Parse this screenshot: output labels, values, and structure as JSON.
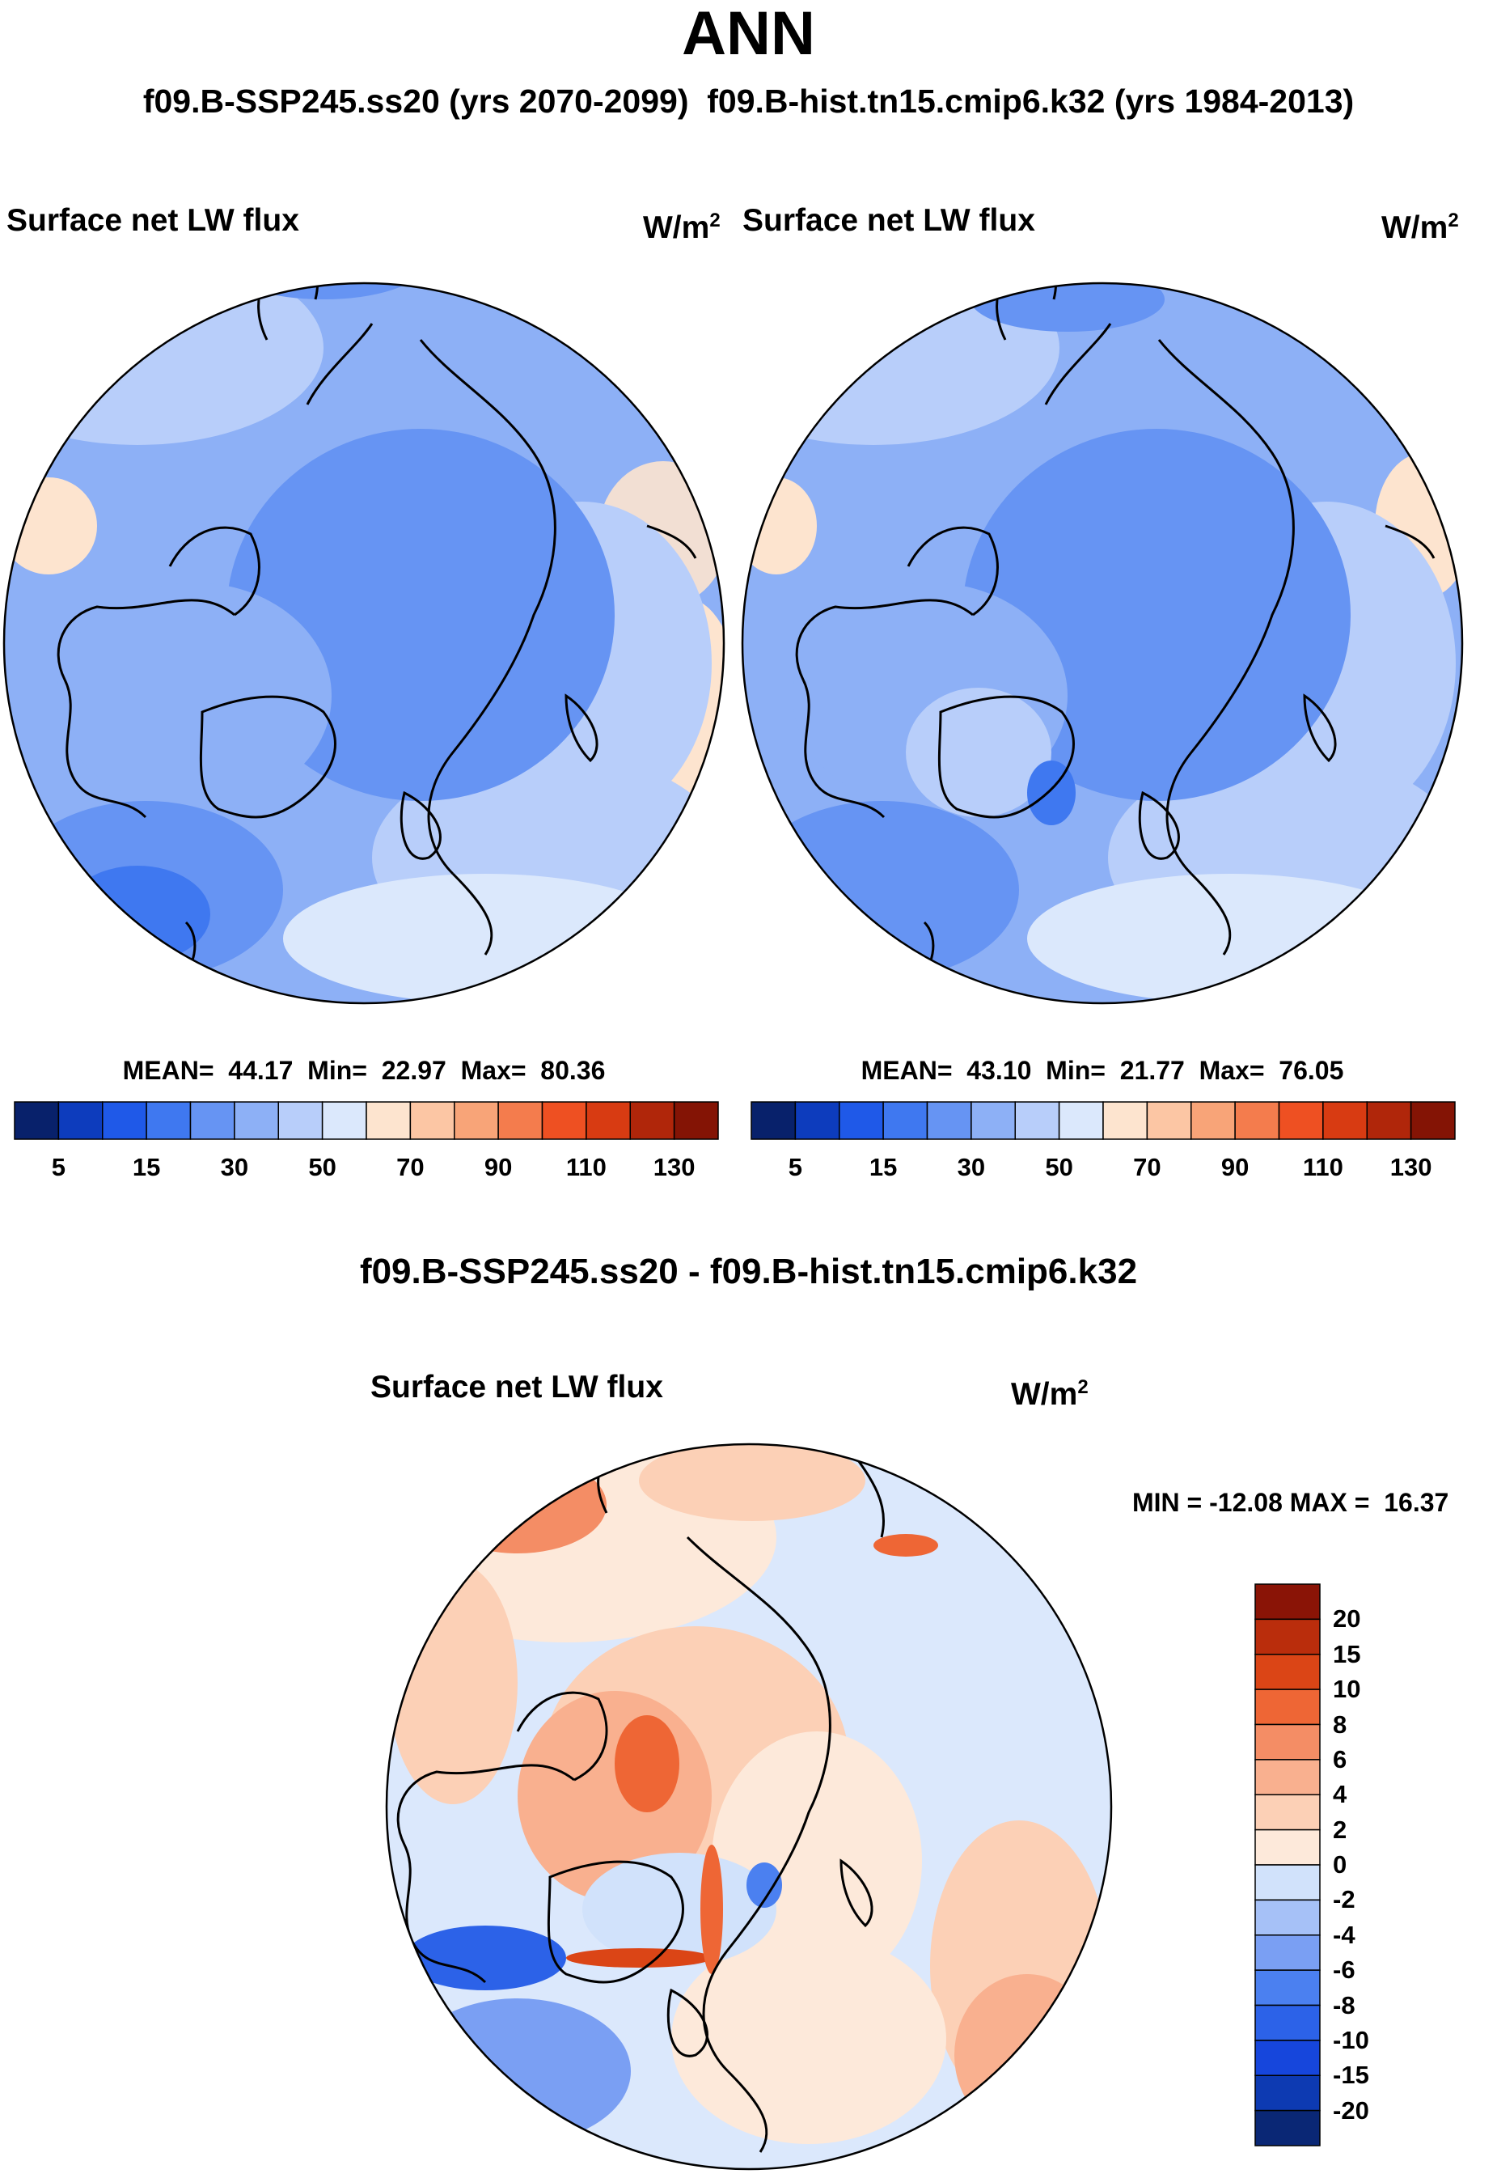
{
  "season": "ANN",
  "header": "f09.B-SSP245.ss20 (yrs 2070-2099)  f09.B-hist.tn15.cmip6.k32 (yrs 1984-2013)",
  "panels": [
    {
      "title": "Surface net LW flux",
      "unit_base": "W/m",
      "unit_exp": "2",
      "stats_text": "MEAN=  44.17  Min=  22.97  Max=  80.36"
    },
    {
      "title": "Surface net LW flux",
      "unit_base": "W/m",
      "unit_exp": "2",
      "stats_text": "MEAN=  43.10  Min=  21.77  Max=  76.05"
    }
  ],
  "diff": {
    "title": "f09.B-SSP245.ss20 - f09.B-hist.tn15.cmip6.k32",
    "panel_title": "Surface net LW flux",
    "unit_base": "W/m",
    "unit_exp": "2",
    "stats_text": "MIN = -12.08 MAX =  16.37"
  },
  "colors": {
    "abs_scale": [
      "#08216b",
      "#0d3cbd",
      "#1f59e8",
      "#3f78f0",
      "#6694f3",
      "#8db0f6",
      "#b8cefa",
      "#dbe8fc",
      "#fde4cf",
      "#fcc6a4",
      "#f8a478",
      "#f47c4d",
      "#ee5022",
      "#d83b12",
      "#b0260a",
      "#841405"
    ],
    "diff_scale": [
      "#0a2775",
      "#0d3ab2",
      "#1646dc",
      "#2c62e8",
      "#4b80f0",
      "#7a9ff3",
      "#a6c1f7",
      "#d1e2fb",
      "#fde9da",
      "#fcd0b6",
      "#f9b08f",
      "#f48d65",
      "#ee6635",
      "#db4516",
      "#ba2d0c",
      "#8a1406"
    ],
    "land_line": "#000000"
  },
  "chart_data": [
    {
      "type": "heatmap",
      "projection": "north-polar-stereographic",
      "title": "Surface net LW flux",
      "units": "W/m2",
      "stats": {
        "mean": 44.17,
        "min": 22.97,
        "max": 80.36
      },
      "levels": [
        5,
        10,
        15,
        20,
        30,
        40,
        50,
        60,
        70,
        80,
        90,
        100,
        110,
        120,
        130
      ],
      "tick_labels": [
        "5",
        "15",
        "30",
        "50",
        "70",
        "90",
        "110",
        "130"
      ],
      "colorbar": "horizontal"
    },
    {
      "type": "heatmap",
      "projection": "north-polar-stereographic",
      "title": "Surface net LW flux",
      "units": "W/m2",
      "stats": {
        "mean": 43.1,
        "min": 21.77,
        "max": 76.05
      },
      "levels": [
        5,
        10,
        15,
        20,
        30,
        40,
        50,
        60,
        70,
        80,
        90,
        100,
        110,
        120,
        130
      ],
      "tick_labels": [
        "5",
        "15",
        "30",
        "50",
        "70",
        "90",
        "110",
        "130"
      ],
      "colorbar": "horizontal"
    },
    {
      "type": "heatmap",
      "projection": "north-polar-stereographic",
      "title": "Surface net LW flux",
      "units": "W/m2",
      "stats": {
        "min": -12.08,
        "max": 16.37
      },
      "levels": [
        -20,
        -15,
        -10,
        -8,
        -6,
        -4,
        -2,
        0,
        2,
        4,
        6,
        8,
        10,
        15,
        20
      ],
      "tick_labels": [
        "20",
        "15",
        "10",
        "8",
        "6",
        "4",
        "2",
        "0",
        "-2",
        "-4",
        "-6",
        "-8",
        "-10",
        "-15",
        "-20"
      ],
      "colorbar": "vertical"
    }
  ]
}
